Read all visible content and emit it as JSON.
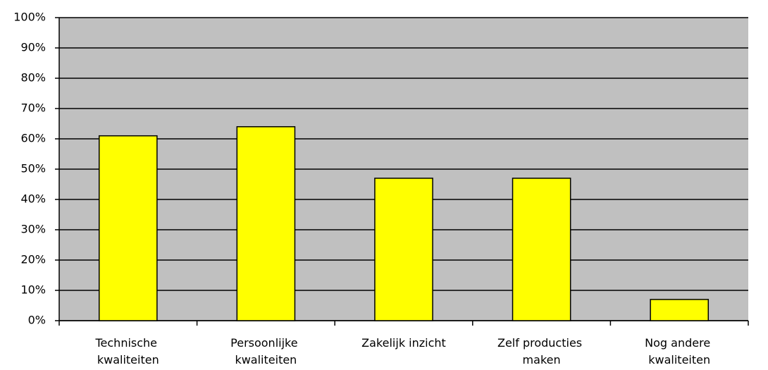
{
  "chart_data": {
    "type": "bar",
    "categories": [
      "Technische kwaliteiten",
      "Persoonlijke kwaliteiten",
      "Zakelijk inzicht",
      "Zelf producties maken",
      "Nog andere kwaliteiten"
    ],
    "values": [
      61,
      64,
      47,
      47,
      7
    ],
    "color": "#ffff00",
    "ylim": [
      0,
      100
    ],
    "yticks": [
      {
        "value": 0,
        "label": "0%"
      },
      {
        "value": 10,
        "label": "10%"
      },
      {
        "value": 20,
        "label": "20%"
      },
      {
        "value": 30,
        "label": "30%"
      },
      {
        "value": 40,
        "label": "40%"
      },
      {
        "value": 50,
        "label": "50%"
      },
      {
        "value": 60,
        "label": "60%"
      },
      {
        "value": 70,
        "label": "70%"
      },
      {
        "value": 80,
        "label": "80%"
      },
      {
        "value": 90,
        "label": "90%"
      },
      {
        "value": 100,
        "label": "100%"
      }
    ],
    "grid": true
  }
}
